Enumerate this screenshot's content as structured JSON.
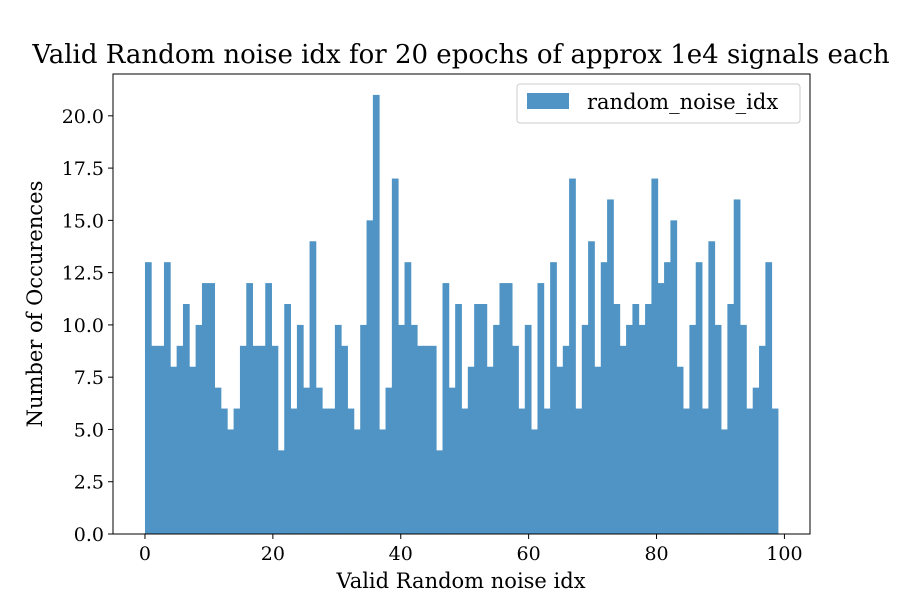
{
  "chart_data": {
    "type": "bar",
    "title": "Valid Random noise idx for 20 epochs of approx 1e4 signals each",
    "xlabel": "Valid Random noise idx",
    "ylabel": "Number of Occurences",
    "xlim": [
      -5,
      104
    ],
    "ylim": [
      0,
      22
    ],
    "x_ticks": [
      0,
      20,
      40,
      60,
      80,
      100
    ],
    "x_tick_labels": [
      "0",
      "20",
      "40",
      "60",
      "80",
      "100"
    ],
    "y_ticks": [
      0,
      2.5,
      5,
      7.5,
      10,
      12.5,
      15,
      17.5,
      20
    ],
    "y_tick_labels": [
      "0.0",
      "2.5",
      "5.0",
      "7.5",
      "10.0",
      "12.5",
      "15.0",
      "17.5",
      "20.0"
    ],
    "grid": false,
    "legend_position": "top-right",
    "bin_start": 0,
    "bin_width": 0.99,
    "series": [
      {
        "name": "random_noise_idx",
        "color": "#4f94c4",
        "values": [
          13,
          9,
          9,
          13,
          8,
          9,
          11,
          8,
          10,
          12,
          12,
          7,
          6,
          5,
          6,
          9,
          12,
          9,
          9,
          12,
          9,
          4,
          11,
          6,
          10,
          7,
          14,
          7,
          6,
          6,
          10,
          9,
          6,
          5,
          10,
          15,
          21,
          5,
          7,
          17,
          10,
          13,
          10,
          9,
          9,
          9,
          4,
          12,
          7,
          11,
          6,
          8,
          11,
          11,
          8,
          10,
          12,
          12,
          9,
          6,
          10,
          5,
          12,
          6,
          13,
          8,
          9,
          17,
          6,
          10,
          14,
          8,
          13,
          16,
          11,
          9,
          10,
          11,
          10,
          11,
          17,
          12,
          13,
          15,
          8,
          6,
          10,
          13,
          6,
          14,
          10,
          5,
          11,
          16,
          10,
          6,
          7,
          9,
          13,
          6
        ]
      }
    ]
  }
}
